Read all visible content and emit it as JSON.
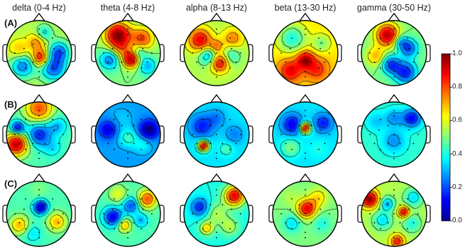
{
  "chart_data": {
    "type": "heatmap",
    "bands": [
      "delta (0-4 Hz)",
      "theta (4-8 Hz)",
      "alpha (8-13 Hz)",
      "beta (13-30 Hz)",
      "gamma (30-50 Hz)"
    ],
    "conditions": [
      "(A)",
      "(B)",
      "(C)"
    ],
    "colorbar": {
      "range": [
        0.0,
        1.0
      ],
      "ticks": [
        "1.0",
        "0.8",
        "0.6",
        "0.4",
        "0.2",
        "0.0"
      ],
      "colormap": "jet"
    },
    "grid": false,
    "legend_position": "right",
    "maps": [
      [
        {
          "base": 0.55,
          "blobs": [
            [
              0.45,
              -0.45,
              0.28,
              -0.35
            ],
            [
              0.62,
              0.05,
              0.22,
              -0.3
            ],
            [
              -0.5,
              -0.4,
              0.25,
              -0.3
            ],
            [
              0.05,
              -0.15,
              0.18,
              0.35
            ],
            [
              -0.05,
              0.35,
              0.2,
              0.2
            ],
            [
              -0.6,
              0.1,
              0.22,
              0.15
            ],
            [
              0.15,
              0.6,
              0.18,
              -0.2
            ]
          ]
        },
        {
          "base": 0.5,
          "blobs": [
            [
              0.1,
              -0.2,
              0.18,
              0.45
            ],
            [
              -0.3,
              0.55,
              0.28,
              0.5
            ],
            [
              0.45,
              0.45,
              0.25,
              0.3
            ],
            [
              -0.55,
              -0.2,
              0.22,
              -0.25
            ],
            [
              0.6,
              -0.4,
              0.2,
              -0.2
            ],
            [
              -0.2,
              0.1,
              0.2,
              0.15
            ],
            [
              0.35,
              0.0,
              0.15,
              -0.15
            ]
          ]
        },
        {
          "base": 0.55,
          "blobs": [
            [
              0.1,
              -0.3,
              0.2,
              0.35
            ],
            [
              -0.5,
              0.4,
              0.25,
              0.35
            ],
            [
              0.5,
              0.45,
              0.22,
              0.2
            ],
            [
              -0.25,
              -0.1,
              0.2,
              -0.25
            ],
            [
              0.45,
              -0.1,
              0.2,
              -0.15
            ],
            [
              0.0,
              0.2,
              0.15,
              0.2
            ]
          ]
        },
        {
          "base": 0.65,
          "blobs": [
            [
              0.0,
              -0.2,
              0.18,
              0.3
            ],
            [
              -0.45,
              -0.55,
              0.25,
              0.25
            ],
            [
              0.35,
              -0.5,
              0.25,
              0.2
            ],
            [
              -0.4,
              0.45,
              0.3,
              -0.25
            ],
            [
              0.5,
              0.3,
              0.2,
              -0.15
            ]
          ]
        },
        {
          "base": 0.5,
          "blobs": [
            [
              -0.2,
              0.55,
              0.25,
              0.45
            ],
            [
              0.35,
              -0.6,
              0.25,
              -0.35
            ],
            [
              -0.1,
              -0.35,
              0.2,
              -0.3
            ],
            [
              0.45,
              0.15,
              0.2,
              -0.3
            ],
            [
              -0.55,
              -0.1,
              0.2,
              0.2
            ],
            [
              0.2,
              0.35,
              0.15,
              -0.2
            ]
          ]
        }
      ],
      [
        {
          "base": 0.45,
          "blobs": [
            [
              -0.7,
              -0.3,
              0.25,
              0.5
            ],
            [
              0.0,
              0.0,
              0.25,
              -0.3
            ],
            [
              -0.65,
              0.2,
              0.15,
              -0.35
            ],
            [
              0.4,
              -0.4,
              0.2,
              -0.1
            ],
            [
              0.0,
              0.8,
              0.3,
              0.35
            ],
            [
              0.55,
              0.25,
              0.2,
              -0.15
            ]
          ]
        },
        {
          "base": 0.28,
          "blobs": [
            [
              0.65,
              0.15,
              0.2,
              -0.3
            ],
            [
              -0.6,
              0.15,
              0.2,
              -0.2
            ],
            [
              0.45,
              -0.3,
              0.2,
              0.1
            ],
            [
              -0.2,
              0.45,
              0.25,
              0.05
            ],
            [
              0.0,
              -0.1,
              0.2,
              0.15
            ]
          ]
        },
        {
          "base": 0.35,
          "blobs": [
            [
              -0.4,
              -0.35,
              0.12,
              0.55
            ],
            [
              -0.45,
              0.25,
              0.25,
              -0.2
            ],
            [
              0.55,
              0.0,
              0.2,
              -0.1
            ],
            [
              0.3,
              -0.45,
              0.15,
              0.1
            ],
            [
              0.0,
              0.5,
              0.2,
              -0.1
            ]
          ]
        },
        {
          "base": 0.35,
          "blobs": [
            [
              0.0,
              0.2,
              0.12,
              0.55
            ],
            [
              -0.4,
              0.3,
              0.22,
              -0.25
            ],
            [
              0.55,
              0.35,
              0.2,
              -0.2
            ],
            [
              -0.45,
              -0.4,
              0.2,
              0.15
            ],
            [
              0.4,
              -0.45,
              0.2,
              0.05
            ]
          ]
        },
        {
          "base": 0.42,
          "blobs": [
            [
              0.0,
              -0.2,
              0.25,
              -0.15
            ],
            [
              0.55,
              0.5,
              0.2,
              -0.3
            ],
            [
              -0.55,
              0.4,
              0.2,
              -0.1
            ],
            [
              0.0,
              0.5,
              0.2,
              -0.15
            ]
          ]
        }
      ],
      [
        {
          "base": 0.45,
          "blobs": [
            [
              0.05,
              0.2,
              0.15,
              -0.4
            ],
            [
              -0.6,
              -0.35,
              0.2,
              0.25
            ],
            [
              0.55,
              -0.25,
              0.2,
              0.25
            ],
            [
              -0.2,
              -0.6,
              0.2,
              -0.1
            ],
            [
              0.0,
              0.75,
              0.2,
              0.05
            ]
          ]
        },
        {
          "base": 0.45,
          "blobs": [
            [
              -0.45,
              -0.1,
              0.2,
              -0.35
            ],
            [
              0.6,
              0.45,
              0.2,
              0.35
            ],
            [
              -0.1,
              -0.35,
              0.15,
              0.25
            ],
            [
              0.1,
              0.25,
              0.18,
              -0.25
            ],
            [
              -0.3,
              0.6,
              0.2,
              0.15
            ],
            [
              0.4,
              -0.2,
              0.15,
              -0.15
            ]
          ]
        },
        {
          "base": 0.4,
          "blobs": [
            [
              0.55,
              0.55,
              0.22,
              0.5
            ],
            [
              0.0,
              0.0,
              0.25,
              0.15
            ],
            [
              -0.5,
              0.2,
              0.2,
              -0.25
            ],
            [
              -0.3,
              -0.45,
              0.15,
              0.25
            ],
            [
              0.4,
              -0.4,
              0.2,
              0.15
            ]
          ]
        },
        {
          "base": 0.5,
          "blobs": [
            [
              0.05,
              0.15,
              0.2,
              0.4
            ],
            [
              -0.4,
              -0.3,
              0.2,
              -0.15
            ],
            [
              0.5,
              -0.3,
              0.2,
              -0.1
            ],
            [
              0.4,
              0.5,
              0.2,
              0.15
            ],
            [
              -0.45,
              0.5,
              0.2,
              0.05
            ]
          ]
        },
        {
          "base": 0.55,
          "blobs": [
            [
              -0.75,
              0.45,
              0.18,
              0.45
            ],
            [
              0.3,
              0.05,
              0.12,
              0.35
            ],
            [
              0.1,
              -0.85,
              0.15,
              0.3
            ],
            [
              -0.35,
              -0.2,
              0.2,
              -0.2
            ],
            [
              0.6,
              0.5,
              0.2,
              -0.2
            ],
            [
              -0.2,
              0.3,
              0.15,
              -0.25
            ],
            [
              0.55,
              -0.3,
              0.2,
              -0.15
            ]
          ]
        }
      ]
    ]
  }
}
